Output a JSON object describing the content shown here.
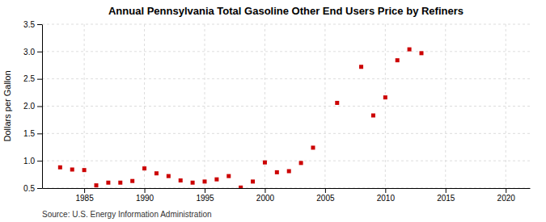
{
  "chart_data": {
    "type": "scatter",
    "title": "Annual Pennsylvania Total Gasoline Other End Users Price by Refiners",
    "y_label": "Dollars per Gallon",
    "annotations": [
      "Source: U.S. Energy Information Administration"
    ],
    "x": [
      1983,
      1984,
      1985,
      1986,
      1987,
      1988,
      1989,
      1990,
      1991,
      1992,
      1993,
      1994,
      1995,
      1996,
      1997,
      1998,
      1999,
      2000,
      2001,
      2002,
      2003,
      2004,
      2006,
      2008,
      2009,
      2010,
      2011,
      2012,
      2013
    ],
    "values": [
      0.88,
      0.84,
      0.83,
      0.55,
      0.6,
      0.6,
      0.63,
      0.86,
      0.77,
      0.72,
      0.64,
      0.6,
      0.62,
      0.66,
      0.72,
      0.51,
      0.62,
      0.97,
      0.79,
      0.81,
      0.96,
      1.24,
      2.06,
      2.72,
      1.83,
      2.16,
      2.84,
      3.04,
      2.97
    ],
    "color": "#cc0000",
    "marker": "square",
    "xlim": [
      1981.5,
      2022
    ],
    "ylim": [
      0.5,
      3.5
    ],
    "xticks": [
      1985,
      1990,
      1995,
      2000,
      2005,
      2010,
      2015,
      2020
    ],
    "yticks": [
      0.5,
      {
        "value": 1.0,
        "label": "1.0"
      },
      1.5,
      {
        "value": 2.0,
        "label": "2.0"
      },
      2.5,
      {
        "value": 3.0,
        "label": "3.0"
      },
      3.5
    ],
    "grid": true
  }
}
